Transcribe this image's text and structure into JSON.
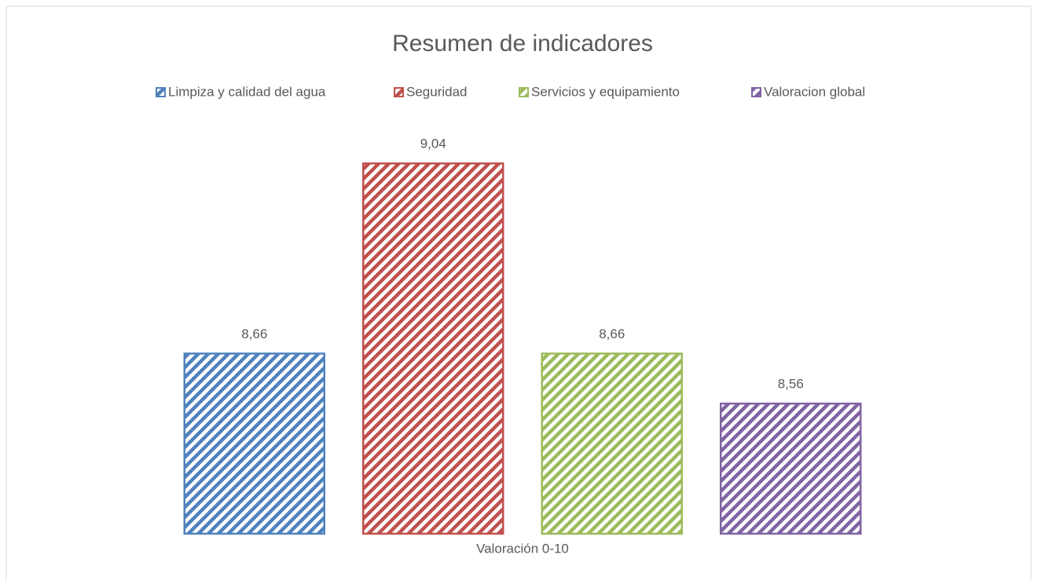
{
  "chart_data": {
    "type": "bar",
    "title": "Resumen de indicadores",
    "categories": [
      "Valoración 0-10"
    ],
    "series": [
      {
        "name": "Limpiza y calidad del agua",
        "color": "#4f81bd",
        "values": [
          8.66
        ],
        "value_labels": [
          "8,66"
        ]
      },
      {
        "name": "Seguridad",
        "color": "#c0504d",
        "values": [
          9.04
        ],
        "value_labels": [
          "9,04"
        ]
      },
      {
        "name": "Servicios y equipamiento",
        "color": "#9bbb59",
        "values": [
          8.66
        ],
        "value_labels": [
          "8,66"
        ]
      },
      {
        "name": "Valoracion global",
        "color": "#8064a2",
        "values": [
          8.56
        ],
        "value_labels": [
          "8,56"
        ]
      }
    ],
    "ylim": [
      8.3,
      9.1
    ],
    "legend": "top"
  }
}
